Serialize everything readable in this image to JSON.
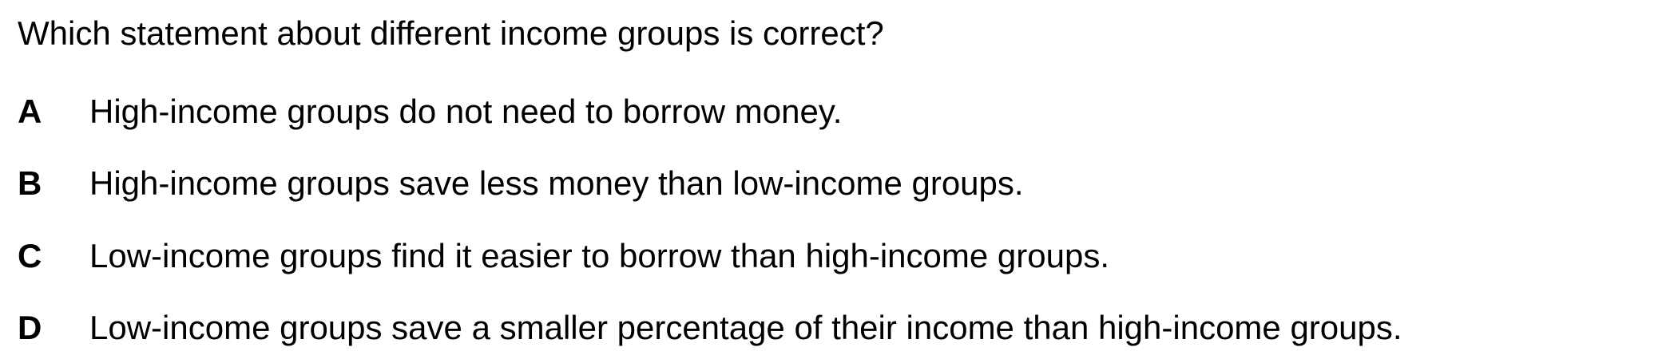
{
  "question": {
    "text": "Which statement about different income groups is correct?"
  },
  "options": [
    {
      "letter": "A",
      "text": "High-income groups do not need to borrow money."
    },
    {
      "letter": "B",
      "text": "High-income groups save less money than low-income groups."
    },
    {
      "letter": "C",
      "text": "Low-income groups find it easier to borrow than high-income groups."
    },
    {
      "letter": "D",
      "text": "Low-income groups save a smaller percentage of their income than high-income groups."
    }
  ]
}
